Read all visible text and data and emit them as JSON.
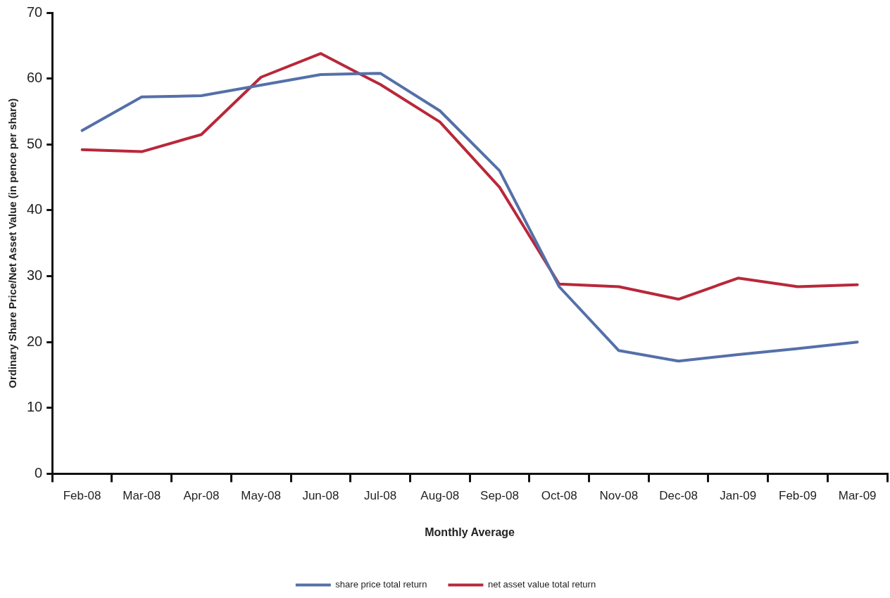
{
  "chart_data": {
    "type": "line",
    "xlabel": "Monthly Average",
    "ylabel": "Ordinary Share Price/Net Asset Value (in pence per share)",
    "categories": [
      "Feb-08",
      "Mar-08",
      "Apr-08",
      "May-08",
      "Jun-08",
      "Jul-08",
      "Aug-08",
      "Sep-08",
      "Oct-08",
      "Nov-08",
      "Dec-08",
      "Jan-09",
      "Feb-09",
      "Mar-09"
    ],
    "series": [
      {
        "name": "share price total return",
        "color": "#5470a8",
        "values": [
          52.1,
          57.2,
          57.4,
          59.0,
          60.6,
          60.8,
          55.1,
          46.0,
          28.4,
          18.7,
          17.1,
          18.1,
          19.0,
          20.0
        ]
      },
      {
        "name": "net asset value total return",
        "color": "#b8283a",
        "values": [
          49.2,
          48.9,
          51.5,
          60.2,
          63.8,
          59.1,
          53.4,
          43.5,
          28.8,
          28.4,
          26.5,
          29.7,
          28.4,
          28.7
        ]
      }
    ],
    "ylim": [
      0,
      70
    ],
    "yticks": [
      0,
      10,
      20,
      30,
      40,
      50,
      60,
      70
    ],
    "grid": false,
    "legend": "bottom",
    "marker": "none",
    "line_style": "solid"
  }
}
